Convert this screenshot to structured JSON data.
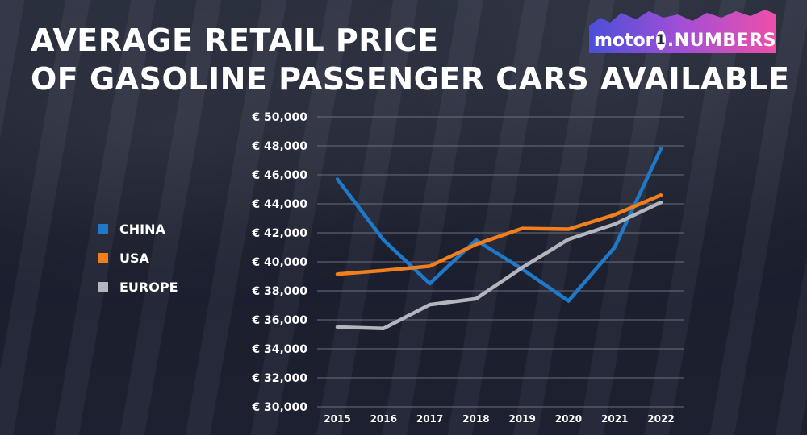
{
  "title": {
    "line1": "AVERAGE RETAIL PRICE",
    "line2": "OF GASOLINE PASSENGER CARS AVAILABLE"
  },
  "logo": {
    "text_left": "motor",
    "one": "1",
    "text_right": ".NUMBERS"
  },
  "colors": {
    "china": "#1f78c8",
    "usa": "#f07f1c",
    "europe": "#b4b6bd",
    "grid": "#6b6f7d",
    "text": "#ffffff"
  },
  "chart_data": {
    "type": "line",
    "title": "AVERAGE RETAIL PRICE OF GASOLINE PASSENGER CARS AVAILABLE",
    "x": [
      "2015",
      "2016",
      "2017",
      "2018",
      "2019",
      "2020",
      "2021",
      "2022"
    ],
    "series": [
      {
        "name": "CHINA",
        "color": "#1f78c8",
        "values": [
          45700,
          41500,
          38500,
          41500,
          39500,
          37300,
          41000,
          47800
        ]
      },
      {
        "name": "USA",
        "color": "#f07f1c",
        "values": [
          39150,
          39400,
          39700,
          41200,
          42300,
          42250,
          43250,
          44600
        ]
      },
      {
        "name": "EUROPE",
        "color": "#b4b6bd",
        "values": [
          35500,
          35400,
          37050,
          37450,
          39600,
          41550,
          42600,
          44100
        ]
      }
    ],
    "ylim": [
      30000,
      50000
    ],
    "yticks": [
      30000,
      32000,
      34000,
      36000,
      38000,
      40000,
      42000,
      44000,
      46000,
      48000,
      50000
    ],
    "ytick_labels": [
      "€ 30,000",
      "€ 32,000",
      "€ 34,000",
      "€ 36,000",
      "€ 38,000",
      "€ 40,000",
      "€ 42,000",
      "€ 44,000",
      "€ 46,000",
      "€ 48,000",
      "€ 50,000"
    ],
    "xlabel": "",
    "ylabel": "",
    "grid": true,
    "legend": "left"
  }
}
